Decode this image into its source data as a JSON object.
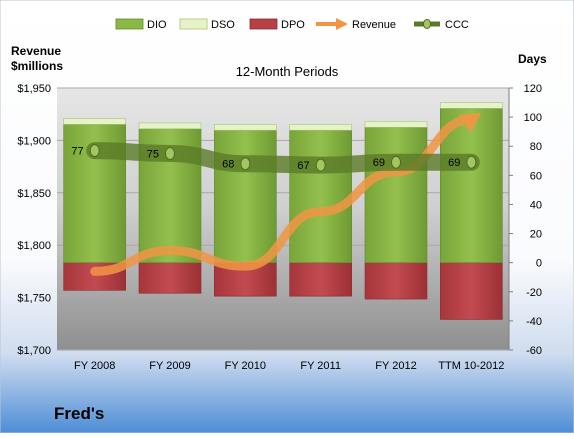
{
  "chart_data": {
    "type": "bar",
    "subtitle": "12-Month Periods",
    "company": "Fred's",
    "left_axis_label": [
      "Revenue",
      "$millions"
    ],
    "right_axis_label": "Days",
    "categories": [
      "FY 2008",
      "FY 2009",
      "FY 2010",
      "FY 2011",
      "FY 2012",
      "TTM 10-2012"
    ],
    "left_axis": {
      "min": 1700,
      "max": 1950,
      "step": 50,
      "ticks": [
        "$1,700",
        "$1,750",
        "$1,800",
        "$1,850",
        "$1,900",
        "$1,950"
      ]
    },
    "right_axis": {
      "min": -60,
      "max": 120,
      "step": 20,
      "ticks": [
        "-60",
        "-40",
        "-20",
        "0",
        "20",
        "40",
        "60",
        "80",
        "100",
        "120"
      ]
    },
    "legend": [
      "DIO",
      "DSO",
      "DPO",
      "Revenue",
      "CCC"
    ],
    "series": [
      {
        "name": "DIO",
        "axis": "right",
        "kind": "stacked-bar",
        "values": [
          95,
          92,
          91,
          91,
          93,
          106
        ],
        "color": "#8cb845"
      },
      {
        "name": "DSO",
        "axis": "right",
        "kind": "stacked-bar",
        "values": [
          4,
          4,
          4,
          4,
          4,
          4
        ],
        "color": "#e6f2c8"
      },
      {
        "name": "DPO",
        "axis": "right",
        "kind": "stacked-bar",
        "values": [
          -19,
          -21,
          -23,
          -23,
          -25,
          -39
        ],
        "color": "#b64045"
      },
      {
        "name": "Revenue",
        "axis": "left",
        "kind": "arrow-line",
        "values": [
          1775,
          1795,
          1780,
          1832,
          1870,
          1920
        ],
        "color": "#f19544"
      },
      {
        "name": "CCC",
        "axis": "right",
        "kind": "line",
        "values": [
          77,
          75,
          68,
          67,
          69,
          69
        ],
        "labels": [
          "77",
          "75",
          "68",
          "67",
          "69",
          "69"
        ],
        "color": "#5a7a28"
      }
    ],
    "grid": true,
    "legend_position": "top"
  }
}
